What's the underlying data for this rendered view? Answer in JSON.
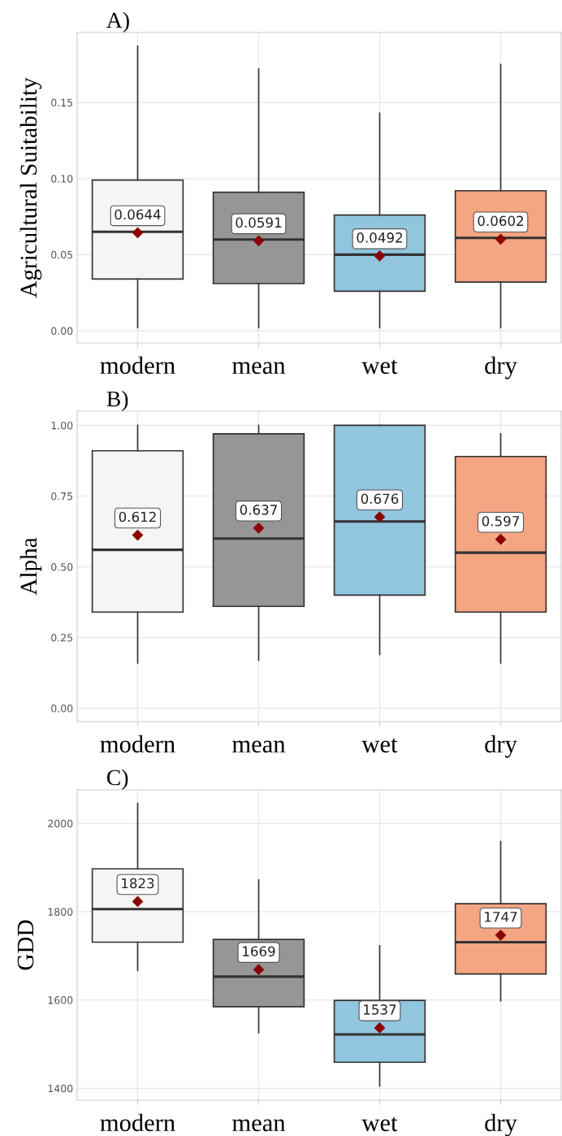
{
  "chart_data": [
    {
      "type": "box",
      "title": "A)",
      "ylabel": "Agricultural Suitability",
      "categories": [
        "modern",
        "mean",
        "wet",
        "dry"
      ],
      "colors": [
        "#f5f5f5",
        "#969696",
        "#92c5de",
        "#f4a582"
      ],
      "ylim": [
        -0.008,
        0.196
      ],
      "yticks": [
        {
          "value": 0,
          "label": "0.00"
        },
        {
          "value": 0.05,
          "label": "0.05"
        },
        {
          "value": 0.1,
          "label": "0.10"
        },
        {
          "value": 0.15,
          "label": "0.15"
        }
      ],
      "grid": true,
      "marker": "diamond",
      "value_labels": [
        "0.0644",
        "0.0591",
        "0.0492",
        "0.0602"
      ],
      "boxes": [
        {
          "low": 0.002,
          "q1": 0.034,
          "median": 0.065,
          "q3": 0.099,
          "high": 0.187,
          "mean": 0.0644
        },
        {
          "low": 0.002,
          "q1": 0.031,
          "median": 0.06,
          "q3": 0.091,
          "high": 0.172,
          "mean": 0.0591
        },
        {
          "low": 0.002,
          "q1": 0.026,
          "median": 0.05,
          "q3": 0.076,
          "high": 0.143,
          "mean": 0.0492
        },
        {
          "low": 0.002,
          "q1": 0.032,
          "median": 0.061,
          "q3": 0.092,
          "high": 0.175,
          "mean": 0.0602
        }
      ]
    },
    {
      "type": "box",
      "title": "B)",
      "ylabel": "Alpha",
      "categories": [
        "modern",
        "mean",
        "wet",
        "dry"
      ],
      "colors": [
        "#f5f5f5",
        "#969696",
        "#92c5de",
        "#f4a582"
      ],
      "ylim": [
        -0.047,
        1.05
      ],
      "yticks": [
        {
          "value": 0,
          "label": "0.00"
        },
        {
          "value": 0.25,
          "label": "0.25"
        },
        {
          "value": 0.5,
          "label": "0.50"
        },
        {
          "value": 0.75,
          "label": "0.75"
        },
        {
          "value": 1,
          "label": "1.00"
        }
      ],
      "grid": true,
      "marker": "diamond",
      "value_labels": [
        "0.612",
        "0.637",
        "0.676",
        "0.597"
      ],
      "boxes": [
        {
          "low": 0.16,
          "q1": 0.34,
          "median": 0.56,
          "q3": 0.91,
          "high": 1.0,
          "mean": 0.612
        },
        {
          "low": 0.17,
          "q1": 0.36,
          "median": 0.6,
          "q3": 0.97,
          "high": 1.0,
          "mean": 0.637
        },
        {
          "low": 0.19,
          "q1": 0.4,
          "median": 0.66,
          "q3": 1.0,
          "high": 1.0,
          "mean": 0.676
        },
        {
          "low": 0.16,
          "q1": 0.34,
          "median": 0.55,
          "q3": 0.89,
          "high": 0.97,
          "mean": 0.597
        }
      ]
    },
    {
      "type": "box",
      "title": "C)",
      "ylabel": "GDD",
      "categories": [
        "modern",
        "mean",
        "wet",
        "dry"
      ],
      "colors": [
        "#f5f5f5",
        "#969696",
        "#92c5de",
        "#f4a582"
      ],
      "ylim": [
        1373,
        2076
      ],
      "yticks": [
        1400,
        1600,
        1800,
        2000
      ],
      "grid": true,
      "marker": "diamond",
      "value_labels": [
        "1823",
        "1669",
        "1537",
        "1747"
      ],
      "boxes": [
        {
          "low": 1667,
          "q1": 1731,
          "median": 1806,
          "q3": 1897,
          "high": 2045,
          "mean": 1823
        },
        {
          "low": 1526,
          "q1": 1585,
          "median": 1653,
          "q3": 1737,
          "high": 1872,
          "mean": 1669
        },
        {
          "low": 1405,
          "q1": 1459,
          "median": 1522,
          "q3": 1599,
          "high": 1723,
          "mean": 1537
        },
        {
          "low": 1598,
          "q1": 1659,
          "median": 1731,
          "q3": 1818,
          "high": 1959,
          "mean": 1747
        }
      ]
    }
  ]
}
